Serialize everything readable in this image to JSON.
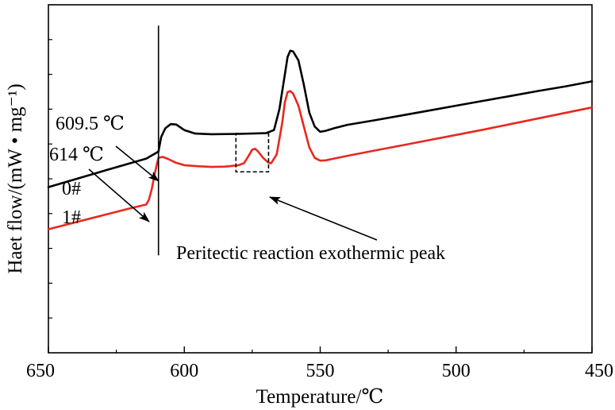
{
  "chart_data": {
    "type": "line",
    "title": "",
    "xlabel": "Temperature/℃",
    "ylabel": "Haet flow/(mW • mg⁻¹)",
    "xlim": [
      650,
      450
    ],
    "x_reversed": true,
    "xticks": [
      650,
      600,
      550,
      500,
      450
    ],
    "y_tick_labels_shown": false,
    "ylim": [
      0,
      100
    ],
    "grid": false,
    "legend": "none",
    "series": [
      {
        "name": "0#",
        "color": "#000000",
        "points": [
          [
            609.5,
            57.8
          ],
          [
            608.5,
            62
          ],
          [
            607,
            64.5
          ],
          [
            605,
            65.7
          ],
          [
            603,
            65.6
          ],
          [
            600,
            64
          ],
          [
            596,
            63
          ],
          [
            590,
            62.8
          ],
          [
            580,
            62.9
          ],
          [
            570,
            63.1
          ],
          [
            567,
            64
          ],
          [
            565,
            70
          ],
          [
            563,
            80
          ],
          [
            562,
            85
          ],
          [
            561,
            86.8
          ],
          [
            560,
            86.6
          ],
          [
            558,
            84
          ],
          [
            556,
            77
          ],
          [
            554,
            69
          ],
          [
            552,
            65
          ],
          [
            550,
            63.5
          ],
          [
            548,
            63.8
          ],
          [
            545,
            64.5
          ],
          [
            540,
            65.5
          ],
          [
            530,
            66.8
          ],
          [
            520,
            68.2
          ],
          [
            510,
            69.6
          ],
          [
            500,
            71
          ],
          [
            490,
            72.4
          ],
          [
            480,
            73.8
          ],
          [
            470,
            75.2
          ],
          [
            460,
            76.5
          ],
          [
            450,
            78
          ]
        ]
      },
      {
        "name": "1#",
        "color": "#e8281e",
        "points": [
          [
            650,
            35.5
          ],
          [
            640,
            37.5
          ],
          [
            630,
            39.5
          ],
          [
            620,
            41.5
          ],
          [
            614,
            42.6
          ],
          [
            613,
            44
          ],
          [
            612,
            47
          ],
          [
            611,
            51
          ],
          [
            610,
            54.5
          ],
          [
            609.5,
            56
          ],
          [
            608,
            56.3
          ],
          [
            606,
            55.7
          ],
          [
            603,
            54.6
          ],
          [
            600,
            53.9
          ],
          [
            595,
            53.6
          ],
          [
            590,
            53.4
          ],
          [
            585,
            53.5
          ],
          [
            580,
            53.9
          ],
          [
            578,
            54.5
          ],
          [
            576,
            57
          ],
          [
            575,
            58.4
          ],
          [
            574,
            58.6
          ],
          [
            573,
            58
          ],
          [
            571,
            56
          ],
          [
            569,
            54.6
          ],
          [
            568,
            54.5
          ],
          [
            566,
            57
          ],
          [
            564,
            66
          ],
          [
            563,
            72
          ],
          [
            562,
            74.9
          ],
          [
            561,
            75.2
          ],
          [
            560,
            74.5
          ],
          [
            558,
            71
          ],
          [
            556,
            65
          ],
          [
            554,
            59
          ],
          [
            552,
            56
          ],
          [
            550,
            55.2
          ],
          [
            548,
            55.3
          ],
          [
            545,
            55.8
          ],
          [
            540,
            56.6
          ],
          [
            530,
            58.1
          ],
          [
            520,
            59.6
          ],
          [
            510,
            61.1
          ],
          [
            500,
            62.6
          ],
          [
            490,
            64.1
          ],
          [
            480,
            65.7
          ],
          [
            470,
            67.3
          ],
          [
            460,
            68.9
          ],
          [
            450,
            70.5
          ]
        ]
      },
      {
        "name": "0#-baseline",
        "color": "#000000",
        "points": [
          [
            650,
            47.6
          ],
          [
            630,
            52.2
          ],
          [
            614,
            55.8
          ],
          [
            609.5,
            57.8
          ]
        ]
      }
    ],
    "reference_line": {
      "x": 609.5,
      "y_range": [
        28,
        94
      ]
    },
    "annotations": [
      {
        "text": "609.5 ℃",
        "x": 609.5,
        "y": 57.8
      },
      {
        "text": "614 ℃",
        "x": 614,
        "y": 42.6
      },
      {
        "text": "Peritectic reaction exothermic peak",
        "x_range": [
          569,
          581
        ],
        "y_range": [
          52,
          63
        ]
      }
    ],
    "series_labels": [
      "0#",
      "1#"
    ]
  }
}
